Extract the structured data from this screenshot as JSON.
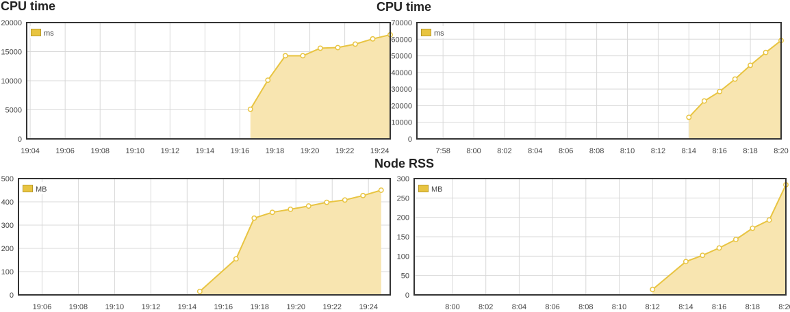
{
  "titles": {
    "cpu_left": "CPU time",
    "cpu_right": "CPU time",
    "rss": "Node RSS"
  },
  "colors": {
    "line": "#e8c441",
    "fill": "#f8e5b0",
    "legend_swatch": "#e8c441",
    "grid": "#d8d8d8",
    "frame": "#333333"
  },
  "chart_data": [
    {
      "type": "area",
      "title": "CPU time",
      "legend": "ms",
      "legend_position": "top-left",
      "grid": true,
      "ylim": [
        0,
        20000
      ],
      "yticks": [
        0,
        5000,
        10000,
        15000,
        20000
      ],
      "xlim": [
        -0.2,
        20.6
      ],
      "xticks": [
        {
          "x": 0,
          "label": "19:04"
        },
        {
          "x": 2,
          "label": "19:06"
        },
        {
          "x": 4,
          "label": "19:08"
        },
        {
          "x": 6,
          "label": "19:10"
        },
        {
          "x": 8,
          "label": "19:12"
        },
        {
          "x": 10,
          "label": "19:14"
        },
        {
          "x": 12,
          "label": "19:16"
        },
        {
          "x": 14,
          "label": "19:18"
        },
        {
          "x": 16,
          "label": "19:20"
        },
        {
          "x": 18,
          "label": "19:22"
        },
        {
          "x": 20,
          "label": "19:24"
        }
      ],
      "series": [
        {
          "name": "ms",
          "points": [
            [
              12.6,
              5100
            ],
            [
              13.6,
              10100
            ],
            [
              14.6,
              14300
            ],
            [
              15.6,
              14300
            ],
            [
              16.6,
              15600
            ],
            [
              17.6,
              15700
            ],
            [
              18.6,
              16300
            ],
            [
              19.6,
              17200
            ],
            [
              20.6,
              17900
            ]
          ]
        }
      ]
    },
    {
      "type": "area",
      "title": "CPU time",
      "legend": "ms",
      "legend_position": "top-left",
      "grid": true,
      "ylim": [
        0,
        70000
      ],
      "yticks": [
        0,
        10000,
        20000,
        30000,
        40000,
        50000,
        60000,
        70000
      ],
      "xlim": [
        -1.7,
        22
      ],
      "xticks": [
        {
          "x": 0,
          "label": "7:58"
        },
        {
          "x": 2,
          "label": "8:00"
        },
        {
          "x": 4,
          "label": "8:02"
        },
        {
          "x": 6,
          "label": "8:04"
        },
        {
          "x": 8,
          "label": "8:06"
        },
        {
          "x": 10,
          "label": "8:08"
        },
        {
          "x": 12,
          "label": "8:10"
        },
        {
          "x": 14,
          "label": "8:12"
        },
        {
          "x": 16,
          "label": "8:14"
        },
        {
          "x": 18,
          "label": "8:16"
        },
        {
          "x": 20,
          "label": "8:18"
        },
        {
          "x": 22,
          "label": "8:20"
        }
      ],
      "series": [
        {
          "name": "ms",
          "points": [
            [
              16,
              13000
            ],
            [
              17,
              22800
            ],
            [
              18,
              28500
            ],
            [
              19,
              36000
            ],
            [
              20,
              44300
            ],
            [
              21,
              52000
            ],
            [
              22,
              59200
            ]
          ]
        }
      ]
    },
    {
      "type": "area",
      "title": "Node RSS",
      "legend": "MB",
      "legend_position": "top-left",
      "grid": true,
      "ylim": [
        0,
        500
      ],
      "yticks": [
        0,
        100,
        200,
        300,
        400,
        500
      ],
      "xlim": [
        -1.3,
        19.2
      ],
      "xticks": [
        {
          "x": 0,
          "label": "19:06"
        },
        {
          "x": 2,
          "label": "19:08"
        },
        {
          "x": 4,
          "label": "19:10"
        },
        {
          "x": 6,
          "label": "19:12"
        },
        {
          "x": 8,
          "label": "19:14"
        },
        {
          "x": 10,
          "label": "19:16"
        },
        {
          "x": 12,
          "label": "19:18"
        },
        {
          "x": 14,
          "label": "19:20"
        },
        {
          "x": 16,
          "label": "19:22"
        },
        {
          "x": 18,
          "label": "19:24"
        }
      ],
      "series": [
        {
          "name": "MB",
          "points": [
            [
              8.7,
              15
            ],
            [
              10.7,
              155
            ],
            [
              11.7,
              330
            ],
            [
              12.7,
              355
            ],
            [
              13.7,
              368
            ],
            [
              14.7,
              382
            ],
            [
              15.7,
              398
            ],
            [
              16.7,
              408
            ],
            [
              17.7,
              427
            ],
            [
              18.7,
              450
            ]
          ]
        }
      ]
    },
    {
      "type": "area",
      "title": "Node RSS",
      "legend": "MB",
      "legend_position": "top-left",
      "grid": true,
      "ylim": [
        0,
        300
      ],
      "yticks": [
        0,
        50,
        100,
        150,
        200,
        250,
        300
      ],
      "xlim": [
        -2.3,
        20
      ],
      "xticks": [
        {
          "x": 0,
          "label": "8:00"
        },
        {
          "x": 2,
          "label": "8:02"
        },
        {
          "x": 4,
          "label": "8:04"
        },
        {
          "x": 6,
          "label": "8:06"
        },
        {
          "x": 8,
          "label": "8:08"
        },
        {
          "x": 10,
          "label": "8:10"
        },
        {
          "x": 12,
          "label": "8:12"
        },
        {
          "x": 14,
          "label": "8:14"
        },
        {
          "x": 16,
          "label": "8:16"
        },
        {
          "x": 18,
          "label": "8:18"
        },
        {
          "x": 20,
          "label": "8:20"
        }
      ],
      "series": [
        {
          "name": "MB",
          "points": [
            [
              12,
              14
            ],
            [
              14,
              86
            ],
            [
              15,
              102
            ],
            [
              16,
              121
            ],
            [
              17,
              143
            ],
            [
              18,
              172
            ],
            [
              19,
              193
            ],
            [
              20,
              284
            ]
          ]
        }
      ]
    }
  ]
}
